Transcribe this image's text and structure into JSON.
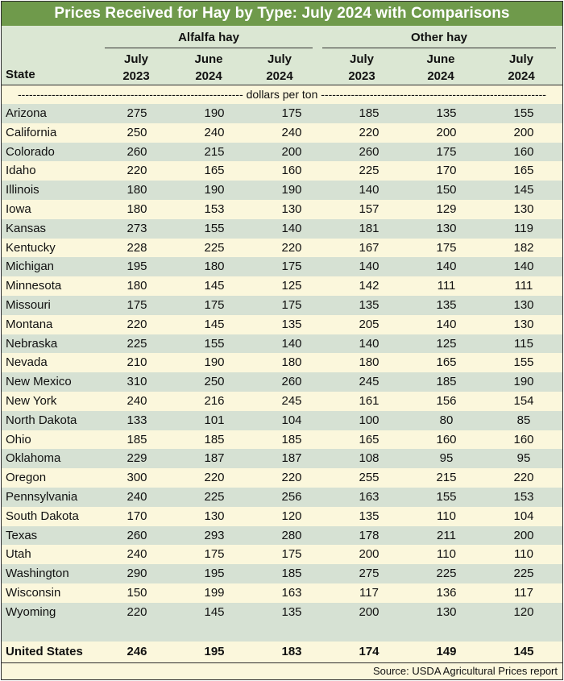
{
  "title": "Prices Received for Hay by Type: July 2024 with Comparisons",
  "header": {
    "state_label": "State",
    "group_alfalfa": "Alfalfa hay",
    "group_other": "Other hay",
    "columns": [
      {
        "line1": "July",
        "line2": "2023"
      },
      {
        "line1": "June",
        "line2": "2024"
      },
      {
        "line1": "July",
        "line2": "2024"
      },
      {
        "line1": "July",
        "line2": "2023"
      },
      {
        "line1": "June",
        "line2": "2024"
      },
      {
        "line1": "July",
        "line2": "2024"
      }
    ]
  },
  "units": "------------------------------------------------------------ dollars per ton ------------------------------------------------------------",
  "rows": [
    {
      "state": "Arizona",
      "values": [
        "275",
        "190",
        "175",
        "185",
        "135",
        "155"
      ]
    },
    {
      "state": "California",
      "values": [
        "250",
        "240",
        "240",
        "220",
        "200",
        "200"
      ]
    },
    {
      "state": "Colorado",
      "values": [
        "260",
        "215",
        "200",
        "260",
        "175",
        "160"
      ]
    },
    {
      "state": "Idaho",
      "values": [
        "220",
        "165",
        "160",
        "225",
        "170",
        "165"
      ]
    },
    {
      "state": "Illinois",
      "values": [
        "180",
        "190",
        "190",
        "140",
        "150",
        "145"
      ]
    },
    {
      "state": "Iowa",
      "values": [
        "180",
        "153",
        "130",
        "157",
        "129",
        "130"
      ]
    },
    {
      "state": "Kansas",
      "values": [
        "273",
        "155",
        "140",
        "181",
        "130",
        "119"
      ]
    },
    {
      "state": "Kentucky",
      "values": [
        "228",
        "225",
        "220",
        "167",
        "175",
        "182"
      ]
    },
    {
      "state": "Michigan",
      "values": [
        "195",
        "180",
        "175",
        "140",
        "140",
        "140"
      ]
    },
    {
      "state": "Minnesota",
      "values": [
        "180",
        "145",
        "125",
        "142",
        "111",
        "111"
      ]
    },
    {
      "state": "Missouri",
      "values": [
        "175",
        "175",
        "175",
        "135",
        "135",
        "130"
      ]
    },
    {
      "state": "Montana",
      "values": [
        "220",
        "145",
        "135",
        "205",
        "140",
        "130"
      ]
    },
    {
      "state": "Nebraska",
      "values": [
        "225",
        "155",
        "140",
        "140",
        "125",
        "115"
      ]
    },
    {
      "state": "Nevada",
      "values": [
        "210",
        "190",
        "180",
        "180",
        "165",
        "155"
      ]
    },
    {
      "state": "New Mexico",
      "values": [
        "310",
        "250",
        "260",
        "245",
        "185",
        "190"
      ]
    },
    {
      "state": "New York",
      "values": [
        "240",
        "216",
        "245",
        "161",
        "156",
        "154"
      ]
    },
    {
      "state": "North Dakota",
      "values": [
        "133",
        "101",
        "104",
        "100",
        "80",
        "85"
      ]
    },
    {
      "state": "Ohio",
      "values": [
        "185",
        "185",
        "185",
        "165",
        "160",
        "160"
      ]
    },
    {
      "state": "Oklahoma",
      "values": [
        "229",
        "187",
        "187",
        "108",
        "95",
        "95"
      ]
    },
    {
      "state": "Oregon",
      "values": [
        "300",
        "220",
        "220",
        "255",
        "215",
        "220"
      ]
    },
    {
      "state": "Pennsylvania",
      "values": [
        "240",
        "225",
        "256",
        "163",
        "155",
        "153"
      ]
    },
    {
      "state": "South Dakota",
      "values": [
        "170",
        "130",
        "120",
        "135",
        "110",
        "104"
      ]
    },
    {
      "state": "Texas",
      "values": [
        "260",
        "293",
        "280",
        "178",
        "211",
        "200"
      ]
    },
    {
      "state": "Utah",
      "values": [
        "240",
        "175",
        "175",
        "200",
        "110",
        "110"
      ]
    },
    {
      "state": "Washington",
      "values": [
        "290",
        "195",
        "185",
        "275",
        "225",
        "225"
      ]
    },
    {
      "state": "Wisconsin",
      "values": [
        "150",
        "199",
        "163",
        "117",
        "136",
        "117"
      ]
    },
    {
      "state": "Wyoming",
      "values": [
        "220",
        "145",
        "135",
        "200",
        "130",
        "120"
      ]
    }
  ],
  "total": {
    "state": "United States",
    "values": [
      "246",
      "195",
      "183",
      "174",
      "149",
      "145"
    ]
  },
  "source": "Source: USDA Agricultural Prices report",
  "colors": {
    "title_bg": "#6f9a4b",
    "header_bg": "#dbe7d3",
    "row_green": "#d6e1d3",
    "row_cream": "#fbf7dc"
  }
}
